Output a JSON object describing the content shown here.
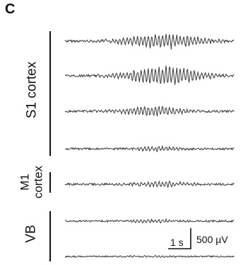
{
  "figure": {
    "panel_letter": "C",
    "regions": [
      {
        "label": "S1 cortex",
        "traces": 4
      },
      {
        "label_line1": "M1",
        "label_line2": "cortex",
        "traces": 1
      },
      {
        "label": "VB",
        "traces": 2
      }
    ],
    "scale_bar": {
      "time_label": "1 s",
      "voltage_label": "500 µV"
    },
    "colors": {
      "trace": "#3a3a3a",
      "text": "#111111",
      "background": "#ffffff"
    }
  }
}
